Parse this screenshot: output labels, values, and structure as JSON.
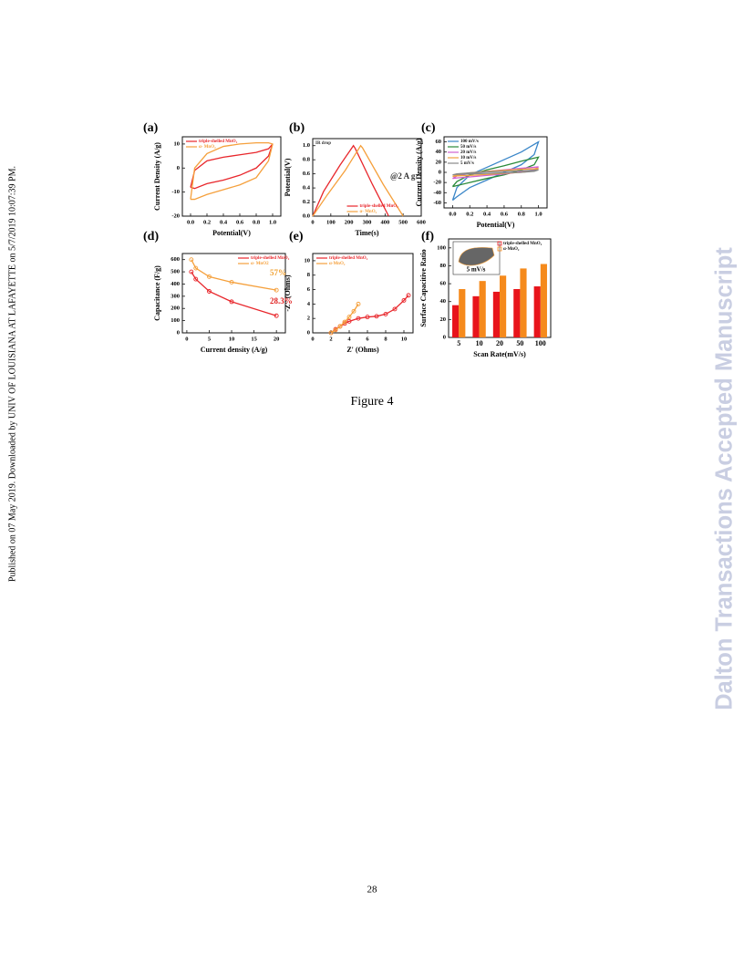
{
  "sidebar": "Published on 07 May 2019. Downloaded by UNIV OF LOUISIANA AT LAFAYETTE on 5/7/2019 10:07:39 PM.",
  "watermark": "Dalton Transactions Accepted Manuscript",
  "caption": "Figure 4",
  "page_number": "28",
  "chart_data": [
    {
      "type": "line",
      "label": "(a)",
      "xlabel": "Potential(V)",
      "ylabel": "Current Density (A/g)",
      "x": [
        0,
        0.05,
        0.2,
        0.4,
        0.6,
        0.8,
        0.95,
        1.0,
        0.95,
        0.8,
        0.6,
        0.4,
        0.2,
        0.05,
        0
      ],
      "series": [
        {
          "name": "triple-shelled MnO₂",
          "color": "#e8262b",
          "values": [
            -8,
            -1,
            3,
            4.5,
            5.5,
            6.5,
            8,
            10,
            5,
            0,
            -3,
            -5,
            -6.5,
            -8.5,
            -8
          ]
        },
        {
          "name": "α- MnO₂",
          "color": "#f5a03c",
          "values": [
            -13,
            0,
            6,
            9,
            10,
            10.5,
            10.5,
            10,
            3,
            -4,
            -7,
            -9,
            -11,
            -13,
            -13
          ]
        }
      ],
      "xlim": [
        -0.1,
        1.1
      ],
      "ylim": [
        -20,
        13
      ],
      "xticks": [
        {
          "value": 0,
          "label": "0.0"
        },
        0.2,
        0.4,
        0.6,
        0.8,
        {
          "value": 1,
          "label": "1.0"
        }
      ],
      "yticks": [
        -20,
        -10,
        0,
        10
      ],
      "legend": "upper left"
    },
    {
      "type": "line",
      "label": "(b)",
      "xlabel": "Time(s)",
      "ylabel": "Potential(V)",
      "annotations": [
        "IR drop",
        "@2 A g⁻¹"
      ],
      "series": [
        {
          "name": "triple-shelled MnO₂",
          "color": "#e8262b",
          "x": [
            0,
            60,
            150,
            225,
            235,
            330,
            420
          ],
          "values": [
            0,
            0.35,
            0.72,
            1.0,
            0.96,
            0.45,
            0
          ]
        },
        {
          "name": "α- MnO₂",
          "color": "#f5a03c",
          "x": [
            0,
            80,
            180,
            265,
            275,
            390,
            500
          ],
          "values": [
            0,
            0.3,
            0.65,
            1.0,
            0.97,
            0.45,
            0
          ]
        }
      ],
      "xlim": [
        0,
        600
      ],
      "ylim": [
        0,
        1.1
      ],
      "xticks": [
        0,
        100,
        200,
        300,
        400,
        500,
        600
      ],
      "yticks": [
        {
          "value": 0,
          "label": "0.0"
        },
        0.2,
        0.4,
        0.6,
        0.8,
        {
          "value": 1,
          "label": "1.0"
        }
      ],
      "legend": "lower center"
    },
    {
      "type": "line",
      "label": "(c)",
      "xlabel": "Potential(V)",
      "ylabel": "Current Density (A/g)",
      "x": [
        0,
        0.05,
        0.2,
        0.4,
        0.6,
        0.8,
        0.95,
        1.0,
        0.95,
        0.8,
        0.6,
        0.4,
        0.2,
        0.05,
        0
      ],
      "series": [
        {
          "name": "100 mV/s",
          "color": "#3a86c8",
          "values": [
            -55,
            -30,
            -5,
            10,
            25,
            40,
            55,
            60,
            35,
            15,
            0,
            -15,
            -30,
            -48,
            -55
          ]
        },
        {
          "name": "50 mV/s",
          "color": "#2a8a3a",
          "values": [
            -28,
            -18,
            -5,
            5,
            13,
            22,
            28,
            30,
            15,
            5,
            -5,
            -12,
            -20,
            -26,
            -28
          ]
        },
        {
          "name": "20 mV/s",
          "color": "#d060d0",
          "values": [
            -12,
            -7,
            -2,
            2,
            5,
            8,
            10,
            11,
            5,
            1,
            -3,
            -6,
            -9,
            -11,
            -12
          ]
        },
        {
          "name": "10 mV/s",
          "color": "#f0a040",
          "values": [
            -8,
            -5,
            -1,
            2,
            4,
            6,
            7,
            8,
            3,
            0,
            -2,
            -4,
            -6,
            -7,
            -8
          ]
        },
        {
          "name": "5 mV/s",
          "color": "#888888",
          "values": [
            -5,
            -3,
            -1,
            1,
            2,
            3,
            4,
            5,
            2,
            0,
            -1,
            -2,
            -3,
            -4,
            -5
          ]
        }
      ],
      "xlim": [
        -0.1,
        1.1
      ],
      "ylim": [
        -70,
        70
      ],
      "xticks": [
        {
          "value": 0,
          "label": "0.0"
        },
        0.2,
        0.4,
        0.6,
        0.8,
        {
          "value": 1,
          "label": "1.0"
        }
      ],
      "yticks": [
        -60,
        -40,
        -20,
        0,
        20,
        40,
        60
      ],
      "legend": "upper left"
    },
    {
      "type": "line",
      "label": "(d)",
      "xlabel": "Current density (A/g)",
      "ylabel": "Capacitance (F/g)",
      "annotations": [
        "57%",
        "28.3%"
      ],
      "marker": "circle",
      "x": [
        1,
        2,
        5,
        10,
        20
      ],
      "series": [
        {
          "name": "triple-shelled MnO₂",
          "color": "#e8262b",
          "values": [
            500,
            440,
            340,
            255,
            140
          ]
        },
        {
          "name": "α- MnO2",
          "color": "#f5a03c",
          "values": [
            600,
            530,
            460,
            415,
            350
          ]
        }
      ],
      "xlim": [
        -1,
        22
      ],
      "ylim": [
        0,
        650
      ],
      "xticks": [
        0,
        5,
        10,
        15,
        20
      ],
      "yticks": [
        0,
        100,
        200,
        300,
        400,
        500,
        600
      ],
      "legend": "upper right"
    },
    {
      "type": "line",
      "label": "(e)",
      "xlabel": "Z' (Ohms)",
      "ylabel": "-Z'' (Ohms)",
      "marker": "circle",
      "series": [
        {
          "name": "triple-shelled MnO₂",
          "color": "#e8262b",
          "x": [
            2,
            2.5,
            3,
            3.5,
            4,
            5,
            6,
            7,
            8,
            9,
            10,
            10.5
          ],
          "values": [
            0,
            0.5,
            0.9,
            1.3,
            1.6,
            2,
            2.2,
            2.3,
            2.6,
            3.3,
            4.5,
            5.2
          ]
        },
        {
          "name": "α-MnO₂",
          "color": "#f5a03c",
          "x": [
            2,
            2.5,
            3,
            3.5,
            4,
            4.5,
            5
          ],
          "values": [
            0,
            0.4,
            0.9,
            1.5,
            2.2,
            3,
            4
          ]
        }
      ],
      "xlim": [
        0,
        11
      ],
      "ylim": [
        0,
        11
      ],
      "xticks": [
        0,
        2,
        4,
        6,
        8,
        10
      ],
      "yticks": [
        0,
        2,
        4,
        6,
        8,
        10
      ],
      "legend": "upper left"
    },
    {
      "type": "bar",
      "label": "(f)",
      "xlabel": "Scan Rate(mV/s)",
      "ylabel": "Surface Capacitive Ratio",
      "inset_label": "5 mV/s",
      "categories": [
        "5",
        "10",
        "20",
        "50",
        "100"
      ],
      "series": [
        {
          "name": "triple-shelled MnO₂",
          "color": "#e8141b",
          "values": [
            36,
            46,
            51,
            54,
            57
          ]
        },
        {
          "name": "α-MnO₂",
          "color": "#f58a1c",
          "values": [
            54,
            63,
            69,
            77,
            82
          ]
        }
      ],
      "ylim": [
        0,
        110
      ],
      "yticks": [
        0,
        20,
        40,
        60,
        80,
        100
      ],
      "legend": "upper right"
    }
  ]
}
